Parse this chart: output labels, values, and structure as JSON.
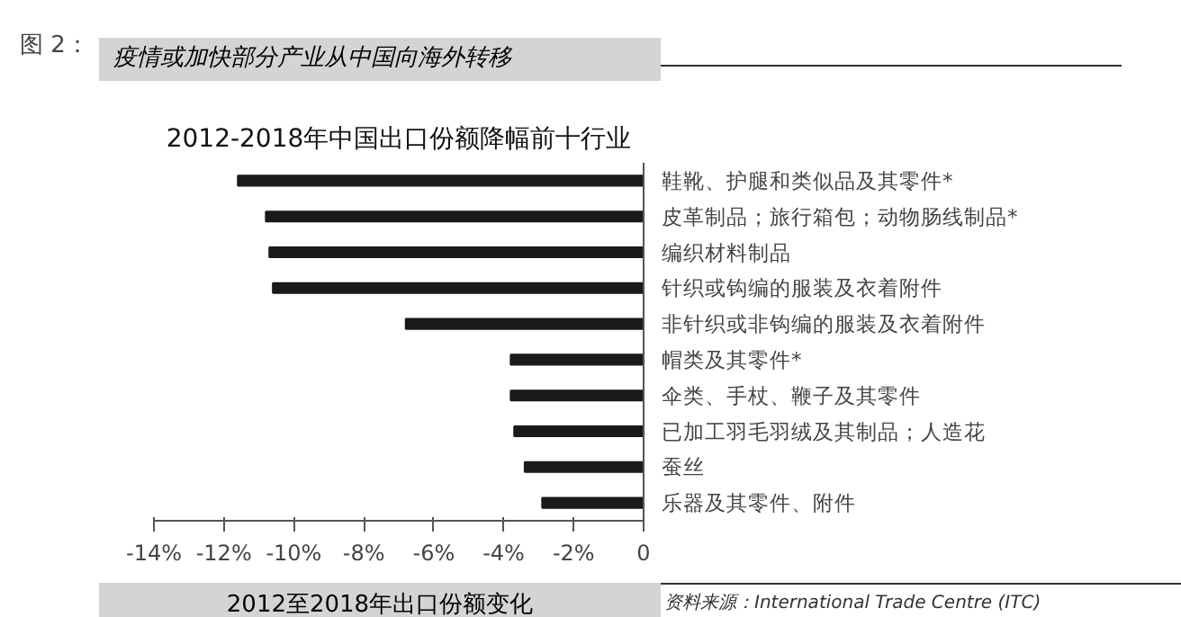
{
  "chart_data": {
    "type": "bar",
    "orientation": "horizontal",
    "title": "疫情或加快部分产业从中国向海外转移",
    "subtitle": "2012-2018年中国出口份额降幅前十行业",
    "xlabel": "2012至2018年出口份额变化",
    "annotations": [
      "图 2：",
      "资料来源：International Trade Centre (ITC)"
    ],
    "categories": [
      "鞋靴、护腿和类似品及其零件*",
      "皮革制品；旅行箱包；动物肠线制品*",
      "编织材料制品",
      "针织或钩编的服装及衣着附件",
      "非针织或非钩编的服装及衣着附件",
      "帽类及其零件*",
      "伞类、手杖、鞭子及其零件",
      "已加工羽毛羽绒及其制品；人造花",
      "蚕丝",
      "乐器及其零件、附件"
    ],
    "values": [
      -11.6,
      -10.8,
      -10.7,
      -10.6,
      -6.8,
      -3.8,
      -3.8,
      -3.7,
      -3.4,
      -2.9
    ],
    "color": "#1a1a1a",
    "xlim": [
      -14,
      0
    ],
    "xticks": [
      {
        "value": -14,
        "label": "-14%"
      },
      {
        "value": -12,
        "label": "-12%"
      },
      {
        "value": -10,
        "label": "-10%"
      },
      {
        "value": -8,
        "label": "-8%"
      },
      {
        "value": -6,
        "label": "-6%"
      },
      {
        "value": -4,
        "label": "-4%"
      },
      {
        "value": -2,
        "label": "-2%"
      },
      0
    ],
    "grid": false
  }
}
